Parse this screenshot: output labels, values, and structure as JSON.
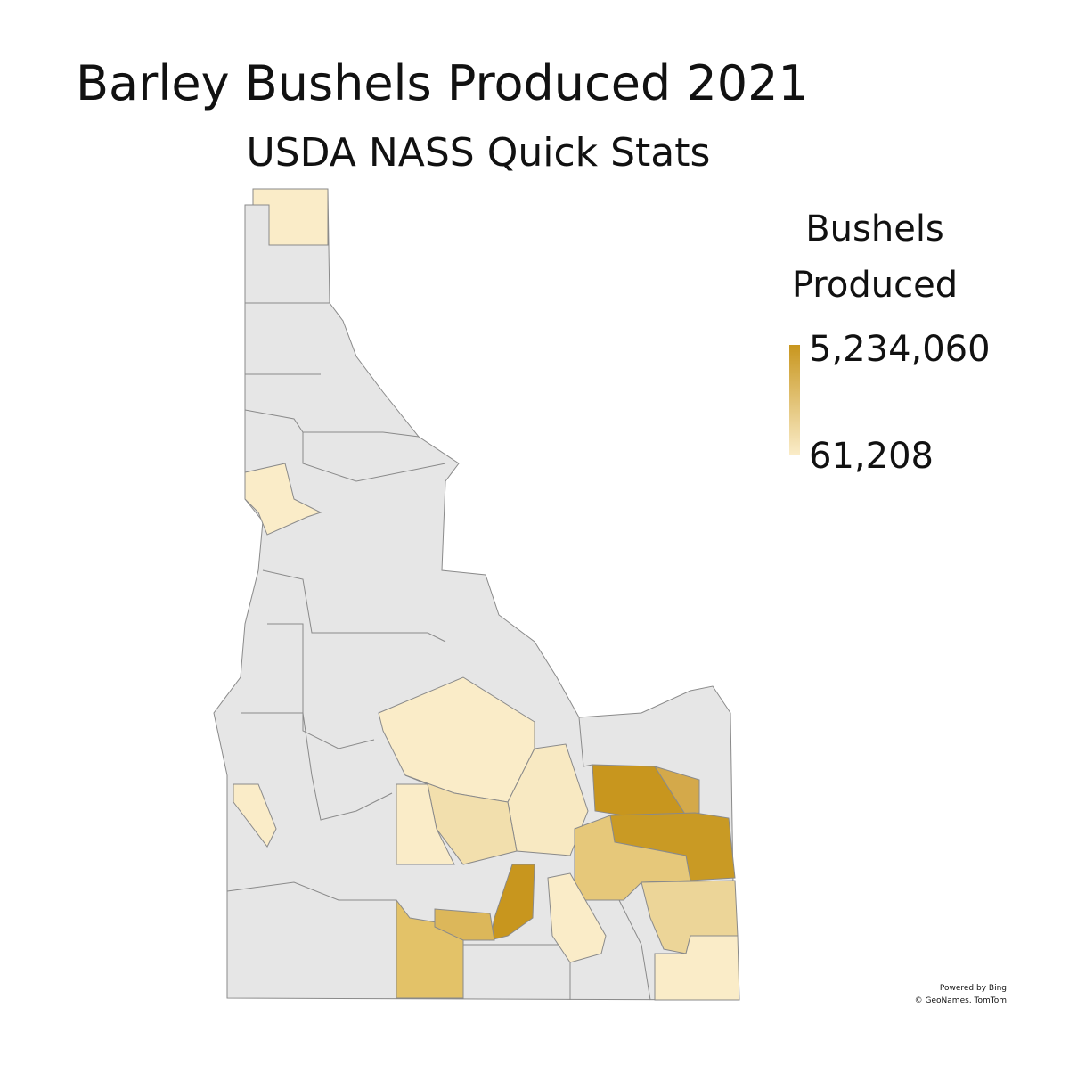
{
  "header": {
    "title": "Barley Bushels Produced 2021",
    "subtitle": "USDA NASS Quick Stats"
  },
  "legend": {
    "title_lines": [
      "Bushels",
      "Produced"
    ],
    "max": {
      "value": 5234060,
      "label": "5,234,060"
    },
    "min": {
      "value": 61208,
      "label": "61,208"
    },
    "colors": [
      "#faecc8",
      "#c8961e"
    ]
  },
  "attribution": [
    "Powered by Bing",
    "© GeoNames, TomTom"
  ]
}
